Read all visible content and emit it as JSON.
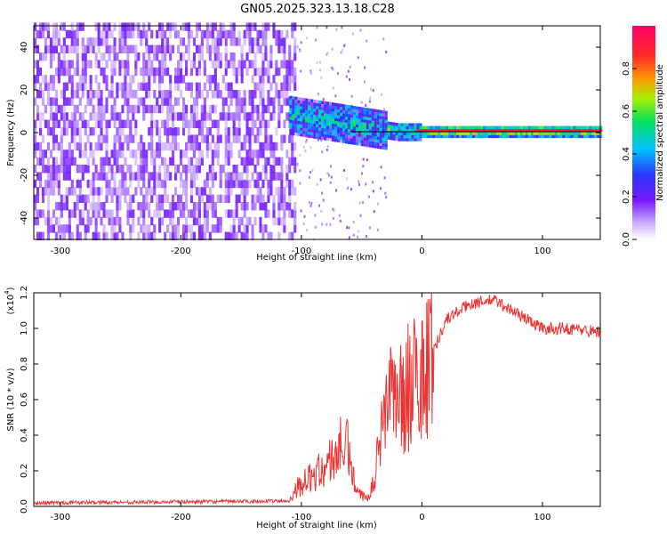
{
  "title": "GN05.2025.323.13.18.C28",
  "chart_data": [
    {
      "type": "heatmap",
      "title": "GN05.2025.323.13.18.C28",
      "xlabel": "Height of straight line (km)",
      "ylabel": "Frequency (Hz)",
      "xlim": [
        -322,
        148
      ],
      "ylim": [
        -50,
        50
      ],
      "xticks": [
        -300,
        -200,
        -100,
        0,
        100
      ],
      "yticks": [
        -40,
        -20,
        0,
        20,
        40
      ],
      "colorbar": {
        "label": "Normalized spectral amplitude",
        "range": [
          0.0,
          1.0
        ],
        "ticks": [
          0.0,
          0.2,
          0.4,
          0.6,
          0.8
        ],
        "colormap": [
          "#ffffff",
          "#8800ff",
          "#2233ff",
          "#00bbff",
          "#00ee44",
          "#ccee00",
          "#ff3333",
          "#ff0066"
        ]
      },
      "description_regions": {
        "noise_band": {
          "x": [
            -322,
            -105
          ],
          "typical_amplitude": 0.1
        },
        "signal_trace": {
          "x": [
            -110,
            148
          ],
          "frequency_center_hz": [
            8,
            0
          ],
          "peak_amplitude": 0.95
        }
      }
    },
    {
      "type": "line",
      "xlabel": "Height of straight line (km)",
      "ylabel": "SNR (10 * v/v)",
      "scale_label": "(x10",
      "scale_exp": "4",
      "xlim": [
        -322,
        148
      ],
      "ylim": [
        0.0,
        1.2
      ],
      "xticks": [
        -300,
        -200,
        -100,
        0,
        100
      ],
      "yticks": [
        0.0,
        0.2,
        0.4,
        0.6,
        0.8,
        1.0,
        1.2
      ],
      "color": "#ee3333",
      "envelope": {
        "x": [
          -322,
          -110,
          -105,
          -80,
          -65,
          -60,
          -55,
          -45,
          -40,
          -35,
          -30,
          -25,
          -20,
          -10,
          0,
          10,
          20,
          40,
          60,
          80,
          100,
          120,
          148
        ],
        "y": [
          0.02,
          0.03,
          0.1,
          0.22,
          0.35,
          0.3,
          0.08,
          0.04,
          0.18,
          0.32,
          0.48,
          0.58,
          0.55,
          0.62,
          0.72,
          0.88,
          1.05,
          1.14,
          1.16,
          1.08,
          1.0,
          1.0,
          0.98
        ]
      }
    }
  ]
}
